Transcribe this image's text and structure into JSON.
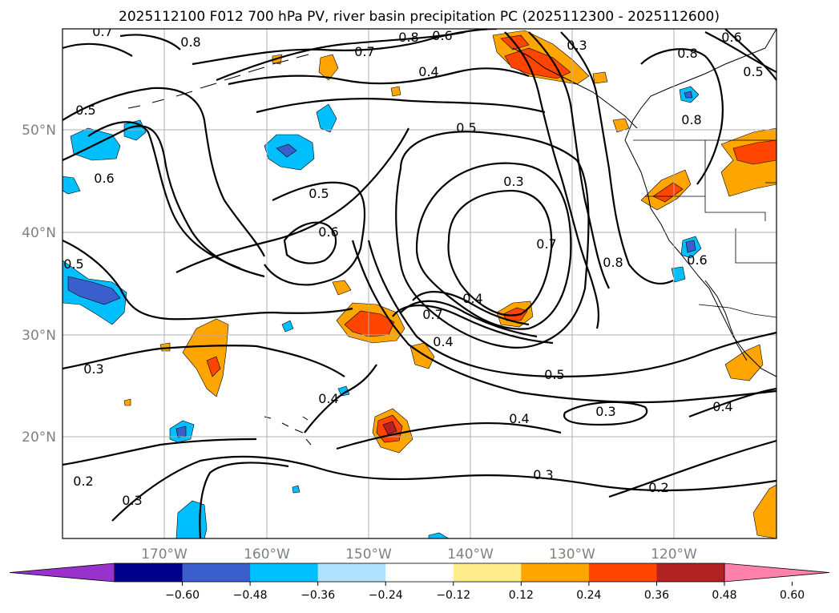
{
  "title": "2025112100 F012 700 hPa PV, river basin precipitation PC (2025112300 - 2025112600)",
  "lat_labels": [
    "50°N",
    "40°N",
    "30°N",
    "20°N"
  ],
  "lon_labels": [
    "170°W",
    "160°W",
    "150°W",
    "140°W",
    "130°W",
    "120°W"
  ],
  "colorbar": {
    "colors": [
      "#9932cc",
      "#00008b",
      "#3a5fcd",
      "#00bfff",
      "#b0e2ff",
      "#ffffff",
      "#ffec8b",
      "#ffa500",
      "#ff4500",
      "#b22222",
      "#ff82ab"
    ],
    "ticks": [
      "−0.60",
      "−0.48",
      "−0.36",
      "−0.24",
      "−0.12",
      "0.12",
      "0.24",
      "0.36",
      "0.48",
      "0.60"
    ]
  },
  "contour_labels": [
    "0.7",
    "0.8",
    "0.7",
    "0.8",
    "0.6",
    "0.3",
    "0.6",
    "0.5",
    "0.8",
    "0.4",
    "0.5",
    "0.5",
    "0.8",
    "0.6",
    "0.3",
    "0.5",
    "0.6",
    "0.7",
    "0.8",
    "0.6",
    "0.5",
    "0.4",
    "0.7",
    "0.4",
    "0.3",
    "0.5",
    "0.4",
    "0.3",
    "0.4",
    "0.4",
    "0.2",
    "0.3",
    "0.3",
    "0.2"
  ],
  "colors": {
    "contour": "#000000",
    "grid": "#b0b0b0",
    "axis_label": "#808080"
  }
}
